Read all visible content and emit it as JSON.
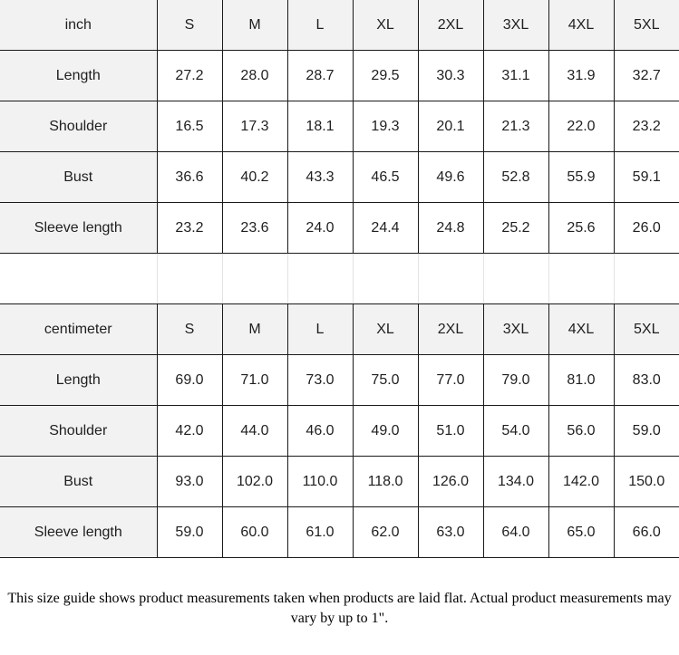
{
  "colors": {
    "header_bg": "#f2f2f2",
    "label_col_bg": "#f2f2f2",
    "border": "#1a1a1a",
    "spacer_divider": "#e3e3e3",
    "text": "#1f1f1f"
  },
  "chart_data": {
    "type": "table",
    "tables": [
      {
        "unit": "inch",
        "sizes": [
          "S",
          "M",
          "L",
          "XL",
          "2XL",
          "3XL",
          "4XL",
          "5XL"
        ],
        "rows": [
          {
            "label": "Length",
            "values": [
              "27.2",
              "28.0",
              "28.7",
              "29.5",
              "30.3",
              "31.1",
              "31.9",
              "32.7"
            ]
          },
          {
            "label": "Shoulder",
            "values": [
              "16.5",
              "17.3",
              "18.1",
              "19.3",
              "20.1",
              "21.3",
              "22.0",
              "23.2"
            ]
          },
          {
            "label": "Bust",
            "values": [
              "36.6",
              "40.2",
              "43.3",
              "46.5",
              "49.6",
              "52.8",
              "55.9",
              "59.1"
            ]
          },
          {
            "label": "Sleeve length",
            "values": [
              "23.2",
              "23.6",
              "24.0",
              "24.4",
              "24.8",
              "25.2",
              "25.6",
              "26.0"
            ]
          }
        ]
      },
      {
        "unit": "centimeter",
        "sizes": [
          "S",
          "M",
          "L",
          "XL",
          "2XL",
          "3XL",
          "4XL",
          "5XL"
        ],
        "rows": [
          {
            "label": "Length",
            "values": [
              "69.0",
              "71.0",
              "73.0",
              "75.0",
              "77.0",
              "79.0",
              "81.0",
              "83.0"
            ]
          },
          {
            "label": "Shoulder",
            "values": [
              "42.0",
              "44.0",
              "46.0",
              "49.0",
              "51.0",
              "54.0",
              "56.0",
              "59.0"
            ]
          },
          {
            "label": "Bust",
            "values": [
              "93.0",
              "102.0",
              "110.0",
              "118.0",
              "126.0",
              "134.0",
              "142.0",
              "150.0"
            ]
          },
          {
            "label": "Sleeve length",
            "values": [
              "59.0",
              "60.0",
              "61.0",
              "62.0",
              "63.0",
              "64.0",
              "65.0",
              "66.0"
            ]
          }
        ]
      }
    ]
  },
  "footnote": "This size guide shows product measurements taken when products are laid flat. Actual product measurements may vary by up to 1\"."
}
